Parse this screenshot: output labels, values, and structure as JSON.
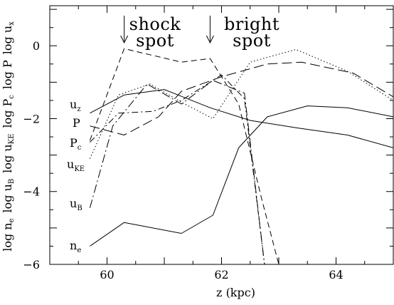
{
  "chart_data": {
    "type": "line",
    "xlabel": "z (kpc)",
    "ylabel": "log n_e  log u_B  log u_KE  log P_c  log P  log u_x",
    "ylabel_parts": [
      {
        "main": "log n",
        "sub": "e"
      },
      {
        "main": "log u",
        "sub": "B"
      },
      {
        "main": "log u",
        "sub": "KE"
      },
      {
        "main": "log P",
        "sub": "c"
      },
      {
        "main": "log P",
        "sub": ""
      },
      {
        "main": "log u",
        "sub": "x"
      }
    ],
    "xlim": [
      59,
      65
    ],
    "ylim": [
      -6,
      1.1
    ],
    "x_ticks": [
      60,
      62,
      64
    ],
    "x_tick_labels": [
      "60",
      "62",
      "64"
    ],
    "y_ticks": [
      0,
      -2,
      -4,
      -6
    ],
    "y_tick_labels": [
      "0",
      "−2",
      "−4",
      "−6"
    ],
    "annotations": [
      {
        "text_lines": [
          "shock",
          "spot"
        ],
        "arrow_x": 60.3
      },
      {
        "text_lines": [
          "bright",
          "spot"
        ],
        "arrow_x": 61.8
      }
    ],
    "series": [
      {
        "name": "u_z",
        "label_main": "u",
        "label_sub": "z",
        "dash": "solid",
        "x": [
          59.7,
          60.3,
          61.0,
          61.8,
          62.5,
          63.3,
          64.2,
          65.0
        ],
        "y": [
          -1.85,
          -1.35,
          -1.2,
          -1.7,
          -2.05,
          -2.25,
          -2.45,
          -2.8
        ]
      },
      {
        "name": "P",
        "label_main": "P",
        "label_sub": "",
        "dash": "long-dash",
        "x": [
          59.7,
          60.3,
          60.9,
          61.3,
          62.0,
          62.8,
          63.4,
          64.3,
          65.0
        ],
        "y": [
          -2.2,
          -2.45,
          -1.95,
          -1.25,
          -0.85,
          -0.5,
          -0.45,
          -0.75,
          -1.4
        ]
      },
      {
        "name": "P_c",
        "label_main": "P",
        "label_sub": "c",
        "dash": "dash-dot",
        "x": [
          59.7,
          60.2,
          60.8,
          61.3,
          62.0,
          62.4,
          62.75
        ],
        "y": [
          -2.65,
          -1.85,
          -1.8,
          -1.5,
          -0.8,
          -1.45,
          -6.0
        ]
      },
      {
        "name": "u_KE",
        "label_main": "u",
        "label_sub": "KE",
        "dash": "dotted",
        "x": [
          59.7,
          60.2,
          60.75,
          61.3,
          61.85,
          62.5,
          63.3,
          64.2,
          65.0
        ],
        "y": [
          -3.1,
          -1.35,
          -1.05,
          -1.55,
          -2.0,
          -0.45,
          -0.1,
          -0.7,
          -1.5
        ]
      },
      {
        "name": "u_B",
        "label_main": "u",
        "label_sub": "B",
        "dash": "dash-dot-long",
        "x": [
          59.7,
          60.1,
          60.7,
          61.3,
          61.85,
          62.4,
          62.75
        ],
        "y": [
          -4.45,
          -2.2,
          -1.05,
          -1.6,
          -0.95,
          -1.3,
          -6.0
        ]
      },
      {
        "name": "u_x",
        "label_main": "u",
        "label_sub": "x",
        "dash": "dashed",
        "x": [
          59.7,
          60.3,
          61.3,
          61.8,
          62.3,
          62.7,
          63.0
        ],
        "y": [
          -2.6,
          -0.08,
          -0.45,
          -0.35,
          -1.6,
          -4.2,
          -6.0
        ]
      },
      {
        "name": "n_e",
        "label_main": "n",
        "label_sub": "e",
        "dash": "solid",
        "x": [
          59.7,
          60.3,
          61.3,
          61.85,
          62.3,
          62.8,
          63.5,
          64.2,
          65.0
        ],
        "y": [
          -5.5,
          -4.85,
          -5.15,
          -4.65,
          -2.8,
          -1.95,
          -1.65,
          -1.7,
          -1.95
        ]
      }
    ],
    "series_labels": [
      {
        "series": "u_z",
        "main": "u",
        "sub": "z"
      },
      {
        "series": "P",
        "main": "P",
        "sub": ""
      },
      {
        "series": "P_c",
        "main": "P",
        "sub": "c"
      },
      {
        "series": "u_KE",
        "main": "u",
        "sub": "KE"
      },
      {
        "series": "u_B",
        "main": "u",
        "sub": "B"
      },
      {
        "series": "n_e",
        "main": "n",
        "sub": "e"
      }
    ]
  }
}
